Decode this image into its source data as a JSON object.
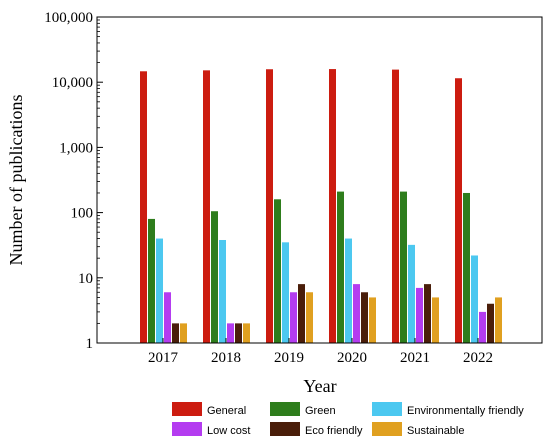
{
  "chart_data": {
    "type": "bar",
    "title": "",
    "xlabel": "Year",
    "ylabel": "Number of publications",
    "yscale": "log",
    "ylim": [
      1,
      100000
    ],
    "yticks": [
      "1",
      "10",
      "100",
      "1,000",
      "10,000",
      "100,000"
    ],
    "categories": [
      "2017",
      "2018",
      "2019",
      "2020",
      "2021",
      "2022"
    ],
    "legend_position": "bottom",
    "series": [
      {
        "name": "General",
        "color": "#cc1c10",
        "values": [
          14700,
          15200,
          15800,
          15900,
          15600,
          11500
        ]
      },
      {
        "name": "Green",
        "color": "#2e7d1c",
        "values": [
          80,
          105,
          160,
          210,
          210,
          200
        ]
      },
      {
        "name": "Environmentally friendly",
        "color": "#4cc8f0",
        "values": [
          40,
          38,
          35,
          40,
          32,
          22
        ]
      },
      {
        "name": "Low cost",
        "color": "#b43cf0",
        "values": [
          6,
          2,
          6,
          8,
          7,
          3
        ]
      },
      {
        "name": "Eco friendly",
        "color": "#4a1e0a",
        "values": [
          2,
          2,
          8,
          6,
          8,
          4
        ]
      },
      {
        "name": "Sustainable",
        "color": "#e0a020",
        "values": [
          2,
          2,
          6,
          5,
          5,
          5
        ]
      }
    ]
  }
}
